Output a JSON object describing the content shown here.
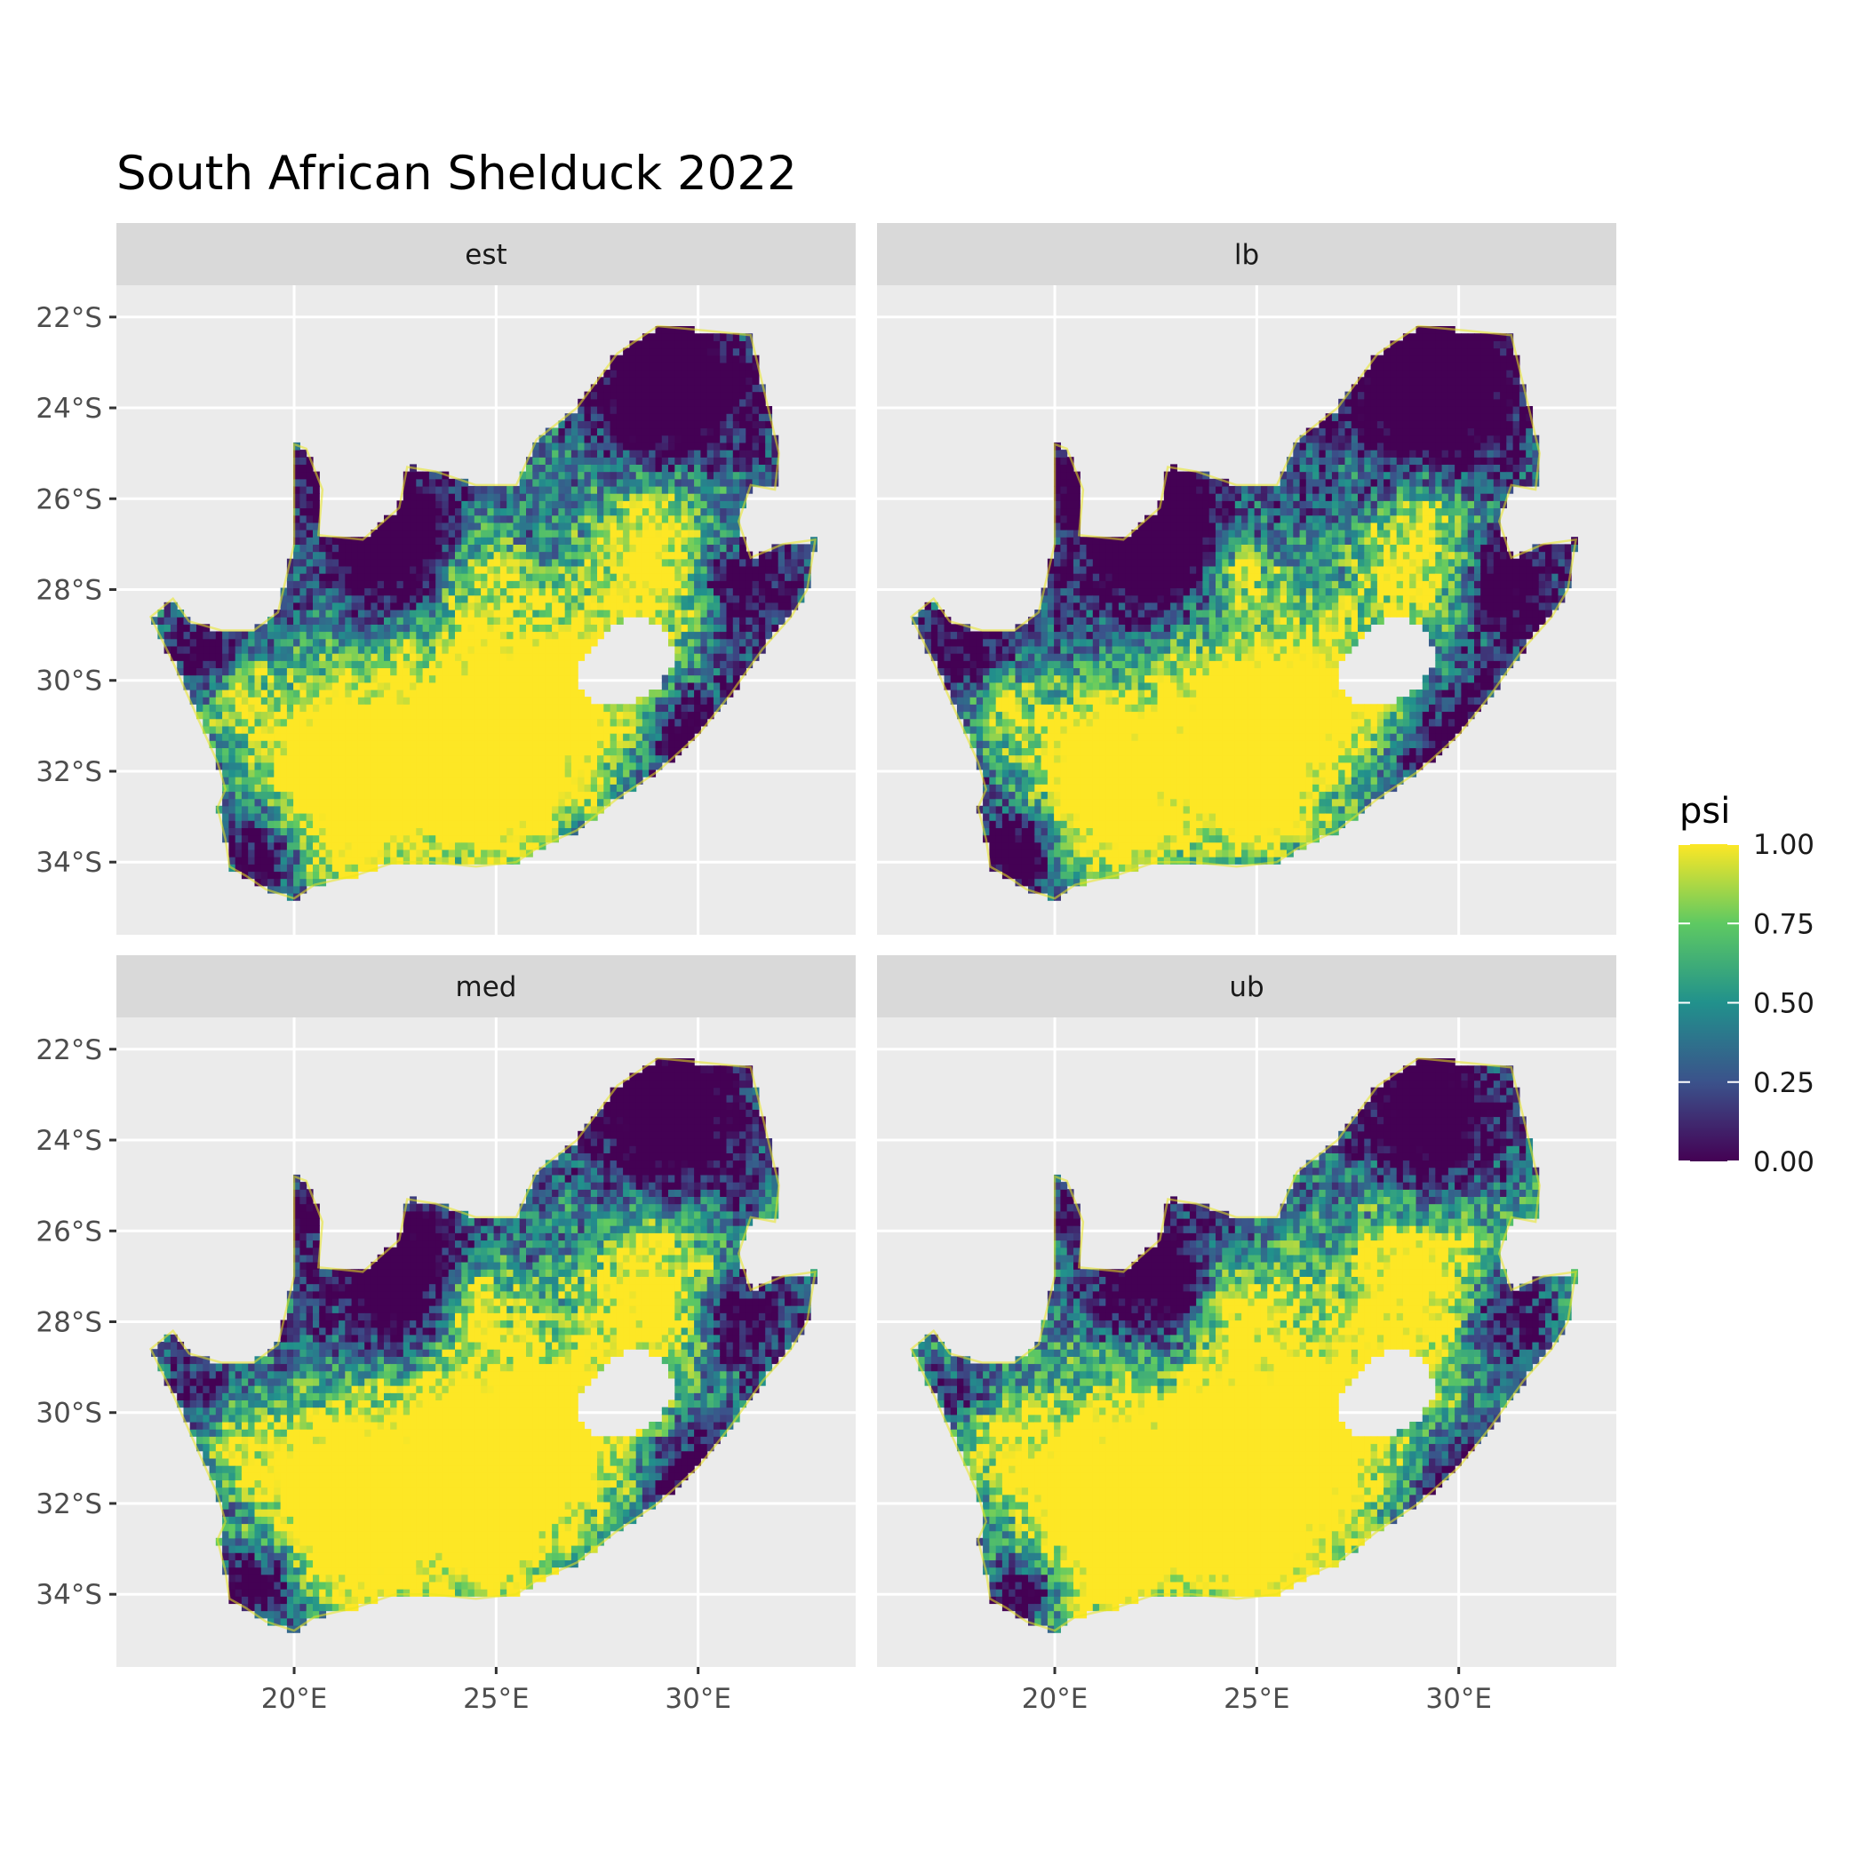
{
  "title": "South African Shelduck 2022",
  "panels": [
    {
      "label": "est",
      "variant": "est"
    },
    {
      "label": "lb",
      "variant": "lb"
    },
    {
      "label": "med",
      "variant": "med"
    },
    {
      "label": "ub",
      "variant": "ub"
    }
  ],
  "axes": {
    "x_ticks": [
      {
        "value": 20,
        "label": "20°E"
      },
      {
        "value": 25,
        "label": "25°E"
      },
      {
        "value": 30,
        "label": "30°E"
      }
    ],
    "y_ticks": [
      {
        "value": -22,
        "label": "22°S"
      },
      {
        "value": -24,
        "label": "24°S"
      },
      {
        "value": -26,
        "label": "26°S"
      },
      {
        "value": -28,
        "label": "28°S"
      },
      {
        "value": -30,
        "label": "30°S"
      },
      {
        "value": -32,
        "label": "32°S"
      },
      {
        "value": -34,
        "label": "34°S"
      }
    ],
    "x_range": [
      15.6,
      33.9
    ],
    "y_range": [
      -35.6,
      -21.3
    ]
  },
  "legend": {
    "title": "psi",
    "ticks": [
      {
        "value": 1.0,
        "label": "1.00"
      },
      {
        "value": 0.75,
        "label": "0.75"
      },
      {
        "value": 0.5,
        "label": "0.50"
      },
      {
        "value": 0.25,
        "label": "0.25"
      },
      {
        "value": 0.0,
        "label": "0.00"
      }
    ],
    "colors": [
      "#440154",
      "#3b528b",
      "#21918c",
      "#5ec962",
      "#fde725"
    ]
  },
  "map_data": {
    "scale": "viridis",
    "value_range": [
      0,
      1
    ],
    "outline_lonlat": [
      [
        16.45,
        -28.6
      ],
      [
        17.0,
        -28.2
      ],
      [
        17.4,
        -28.7
      ],
      [
        18.2,
        -28.9
      ],
      [
        19.0,
        -28.9
      ],
      [
        19.6,
        -28.5
      ],
      [
        20.0,
        -27.0
      ],
      [
        20.0,
        -24.8
      ],
      [
        20.3,
        -24.9
      ],
      [
        20.7,
        -25.8
      ],
      [
        20.6,
        -26.8
      ],
      [
        21.7,
        -26.9
      ],
      [
        22.6,
        -26.2
      ],
      [
        22.8,
        -25.3
      ],
      [
        23.5,
        -25.4
      ],
      [
        24.5,
        -25.7
      ],
      [
        25.5,
        -25.7
      ],
      [
        26.0,
        -24.7
      ],
      [
        27.0,
        -24.0
      ],
      [
        28.0,
        -22.8
      ],
      [
        29.0,
        -22.2
      ],
      [
        30.2,
        -22.3
      ],
      [
        31.3,
        -22.4
      ],
      [
        31.6,
        -23.5
      ],
      [
        32.0,
        -25.0
      ],
      [
        31.9,
        -25.8
      ],
      [
        31.3,
        -25.7
      ],
      [
        31.0,
        -26.5
      ],
      [
        31.3,
        -27.3
      ],
      [
        32.1,
        -27.0
      ],
      [
        32.9,
        -26.9
      ],
      [
        32.7,
        -28.0
      ],
      [
        32.3,
        -28.6
      ],
      [
        31.6,
        -29.3
      ],
      [
        30.8,
        -30.3
      ],
      [
        30.0,
        -31.2
      ],
      [
        29.0,
        -32.0
      ],
      [
        28.0,
        -32.6
      ],
      [
        27.0,
        -33.3
      ],
      [
        26.0,
        -33.7
      ],
      [
        25.5,
        -34.0
      ],
      [
        24.5,
        -34.1
      ],
      [
        23.4,
        -34.0
      ],
      [
        22.5,
        -34.0
      ],
      [
        21.5,
        -34.3
      ],
      [
        20.5,
        -34.5
      ],
      [
        20.0,
        -34.8
      ],
      [
        19.3,
        -34.6
      ],
      [
        18.8,
        -34.3
      ],
      [
        18.4,
        -34.1
      ],
      [
        18.3,
        -33.5
      ],
      [
        18.1,
        -32.8
      ],
      [
        18.3,
        -32.4
      ],
      [
        18.1,
        -31.8
      ],
      [
        17.6,
        -30.8
      ],
      [
        17.0,
        -29.6
      ]
    ],
    "lesotho_lonlat": [
      [
        27.0,
        -29.6
      ],
      [
        27.5,
        -29.1
      ],
      [
        28.1,
        -28.7
      ],
      [
        28.7,
        -28.6
      ],
      [
        29.3,
        -29.0
      ],
      [
        29.4,
        -29.6
      ],
      [
        29.0,
        -30.2
      ],
      [
        28.3,
        -30.5
      ],
      [
        27.5,
        -30.6
      ],
      [
        27.1,
        -30.2
      ]
    ],
    "high_regions": [
      {
        "lon": 29.2,
        "lat": -27.2,
        "r": 1.9,
        "w": 0.9
      },
      {
        "lon": 26.5,
        "lat": -30.5,
        "r": 2.3,
        "w": 1.0
      },
      {
        "lon": 23.5,
        "lat": -31.2,
        "r": 2.4,
        "w": 0.95
      },
      {
        "lon": 20.5,
        "lat": -31.5,
        "r": 1.6,
        "w": 0.8
      },
      {
        "lon": 21.5,
        "lat": -33.2,
        "r": 1.5,
        "w": 0.75
      },
      {
        "lon": 25.0,
        "lat": -33.0,
        "r": 1.4,
        "w": 0.6
      },
      {
        "lon": 24.6,
        "lat": -27.6,
        "r": 1.0,
        "w": 0.6
      },
      {
        "lon": 18.5,
        "lat": -30.5,
        "r": 1.0,
        "w": 0.5
      }
    ],
    "low_regions": [
      {
        "lon": 22.5,
        "lat": -27.0,
        "r": 1.6,
        "w": 0.9
      },
      {
        "lon": 29.3,
        "lat": -23.5,
        "r": 1.8,
        "w": 1.0
      },
      {
        "lon": 31.0,
        "lat": -27.8,
        "r": 1.2,
        "w": 0.8
      },
      {
        "lon": 30.0,
        "lat": -31.6,
        "r": 1.3,
        "w": 0.7
      },
      {
        "lon": 19.2,
        "lat": -33.8,
        "r": 0.8,
        "w": 0.6
      },
      {
        "lon": 17.8,
        "lat": -29.5,
        "r": 0.8,
        "w": 0.5
      },
      {
        "lon": 20.4,
        "lat": -25.6,
        "r": 0.7,
        "w": 0.4
      }
    ],
    "panel_bias": {
      "est": 0.0,
      "lb": -0.12,
      "med": 0.02,
      "ub": 0.14
    }
  }
}
